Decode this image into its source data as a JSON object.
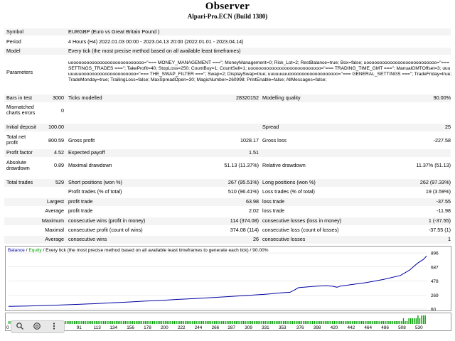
{
  "report": {
    "title": "Observer",
    "subtitle": "Alpari-Pro.ECN (Build 1380)"
  },
  "summary": {
    "symbol_label": "Symbol",
    "symbol_value": "EURGBP (Euro vs Great Britain Pound )",
    "period_label": "Period",
    "period_value": "4 Hours (H4) 2022.01.03 00:00 - 2023.04.13 20:00 (2022.01.01 - 2023.04.14)",
    "model_label": "Model",
    "model_value": "Every tick (the most precise method based on all available least timeframes)",
    "parameters_label": "Parameters",
    "parameters_value": "uoooooooooooooooooooooooooooo=\"=== MONEY_MANAGEMENT ===\"; MoneyManagement=0; Risk_Lot=2; RestBalance=true; Box=false; uooooooooooooooooooooooooooo=\"=== SETTINGS_TRADES ===\"; TakeProfit=40; StopLoss=250; CountBuy=1; CountSell=1; uooooooooooooooooooooooooooo=\"=== TRADING_TIME_GMT ===\"; ManualGMTOffset=3; uuuuuuuuooooooooooooooooooooo=\"=== THE_SWAP_FILTER ===\"; Swap=2; DisplaySwap=true; uuuuuuuuooooooooooooooooooo=\"=== GENERAL_SETTINGS ===\"; TradeFriday=true; TradeMonday=true; TrailingLoss=false; MaxSpreadOpen=30; MagicNumber=260998; PrintEnable=false; AllMessages=false;"
  },
  "stats": {
    "bars_label": "Bars in test",
    "bars_value": "3000",
    "ticks_label": "Ticks modelled",
    "ticks_value": "28320152",
    "quality_label": "Modelling quality",
    "quality_value": "90.00%",
    "mismatch_label": "Mismatched charts errors",
    "mismatch_value": "0",
    "deposit_label": "Initial deposit",
    "deposit_value": "100.00",
    "spread_label": "Spread",
    "spread_value": "25",
    "netprofit_label": "Total net profit",
    "netprofit_value": "800.59",
    "grossprofit_label": "Gross profit",
    "grossprofit_value": "1028.17",
    "grossloss_label": "Gross loss",
    "grossloss_value": "-227.58",
    "pf_label": "Profit factor",
    "pf_value": "4.52",
    "payoff_label": "Expected payoff",
    "payoff_value": "1.51",
    "absdd_label": "Absolute drawdown",
    "absdd_value": "0.89",
    "maxdd_label": "Maximal drawdown",
    "maxdd_value": "51.13 (11.37%)",
    "reldd_label": "Relative drawdown",
    "reldd_value": "11.37% (51.13)",
    "trades_label": "Total trades",
    "trades_value": "529",
    "short_label": "Short positions (won %)",
    "short_value": "267 (95.51%)",
    "long_label": "Long positions (won %)",
    "long_value": "262 (97.33%)",
    "profit_trades_label": "Profit trades (% of total)",
    "profit_trades_value": "510 (96.41%)",
    "loss_trades_label": "Loss trades (% of total)",
    "loss_trades_value": "19 (3.59%)",
    "largest_label": "Largest",
    "largest_profit_label": "profit trade",
    "largest_profit_value": "63.98",
    "largest_loss_label": "loss trade",
    "largest_loss_value": "-37.55",
    "average_label": "Average",
    "average_profit_label": "profit trade",
    "average_profit_value": "2.02",
    "average_loss_label": "loss trade",
    "average_loss_value": "-11.98",
    "maximum_label": "Maximum",
    "max_cw_label": "consecutive wins (profit in money)",
    "max_cw_value": "114 (374.08)",
    "max_cl_label": "consecutive losses (loss in money)",
    "max_cl_value": "1 (-37.55)",
    "maximal_label": "Maximal",
    "mxl_cp_label": "consecutive profit (count of wins)",
    "mxl_cp_value": "374.08 (114)",
    "mxl_cl_label": "consecutive loss (count of losses)",
    "mxl_cl_value": "-37.55 (1)",
    "avg2_label": "Average",
    "avg_cw_label": "consecutive wins",
    "avg_cw_value": "26",
    "avg_cl_label": "consecutive losses",
    "avg_cl_value": "1"
  },
  "chart_header": {
    "balance": "Balance",
    "sep": " / ",
    "equity": "Equity",
    "rest": " / Every tick (the most precise method based on all available least timeframes to generate each tick) / 90.00%",
    "balance_color": "#0000a0",
    "equity_color": "#00a000"
  },
  "chart_data": {
    "type": "line",
    "title": "",
    "xlabel": "",
    "ylabel": "",
    "ylim": [
      60,
      896
    ],
    "xlim": [
      0,
      542
    ],
    "y_ticks": [
      896,
      687,
      478,
      269,
      60
    ],
    "x_ticks": [
      0,
      25,
      47,
      69,
      91,
      113,
      134,
      156,
      178,
      200,
      222,
      244,
      266,
      287,
      309,
      331,
      353,
      376,
      398,
      420,
      442,
      464,
      486,
      508,
      530
    ],
    "series": [
      {
        "name": "Balance",
        "color": "#0000a0",
        "points": [
          [
            0,
            100
          ],
          [
            25,
            105
          ],
          [
            47,
            112
          ],
          [
            69,
            120
          ],
          [
            91,
            130
          ],
          [
            113,
            140
          ],
          [
            134,
            152
          ],
          [
            156,
            165
          ],
          [
            178,
            178
          ],
          [
            200,
            190
          ],
          [
            222,
            205
          ],
          [
            244,
            218
          ],
          [
            266,
            232
          ],
          [
            287,
            246
          ],
          [
            309,
            262
          ],
          [
            331,
            278
          ],
          [
            353,
            300
          ],
          [
            365,
            310
          ],
          [
            372,
            352
          ],
          [
            376,
            378
          ],
          [
            390,
            392
          ],
          [
            398,
            400
          ],
          [
            412,
            408
          ],
          [
            420,
            400
          ],
          [
            426,
            385
          ],
          [
            430,
            402
          ],
          [
            442,
            420
          ],
          [
            464,
            455
          ],
          [
            486,
            500
          ],
          [
            508,
            560
          ],
          [
            520,
            640
          ],
          [
            530,
            740
          ],
          [
            538,
            800
          ],
          [
            542,
            850
          ]
        ]
      }
    ],
    "volume_color": "#00a000",
    "volume_bars": [
      1,
      1,
      1,
      1,
      1,
      1,
      1,
      1,
      1,
      1,
      1,
      1,
      1,
      1,
      1,
      1,
      1,
      1,
      1,
      1,
      1,
      1,
      1,
      1,
      1,
      1,
      1,
      1,
      1,
      1,
      1,
      1,
      1,
      1,
      1,
      1,
      1,
      1,
      1,
      1,
      1,
      1,
      1,
      1,
      1,
      1,
      1,
      1,
      1,
      1,
      1,
      1,
      1,
      1,
      1,
      1,
      1,
      1,
      1,
      1,
      1,
      1,
      1,
      1,
      1,
      1,
      1,
      1,
      1,
      1,
      1,
      1,
      1,
      1,
      1,
      1,
      1,
      1,
      1,
      1,
      1,
      1,
      1,
      1,
      1,
      1,
      1,
      1,
      1,
      1,
      1,
      1,
      1,
      1,
      1,
      1,
      1,
      1,
      1,
      1,
      1,
      1,
      1,
      1,
      1,
      1,
      1,
      1,
      1,
      1,
      1,
      1,
      1,
      1,
      1,
      1,
      1,
      1,
      1,
      1,
      1,
      1,
      1,
      1,
      1,
      1,
      1,
      1,
      1,
      1,
      1,
      1,
      1,
      1,
      1,
      1,
      1,
      1,
      1,
      1,
      1,
      1,
      1,
      1,
      1,
      1,
      1,
      1,
      1,
      1,
      1,
      1,
      1,
      1,
      1,
      1,
      1,
      1,
      1,
      1,
      1,
      1,
      1,
      1,
      1,
      1,
      1,
      1,
      1,
      1,
      1,
      1,
      1,
      1,
      1,
      1,
      1,
      1,
      1,
      1,
      1,
      1,
      1,
      1,
      1,
      1,
      1,
      1,
      1,
      1,
      1,
      1,
      1,
      1,
      1,
      1,
      1,
      1,
      1,
      1,
      1,
      1,
      1,
      1,
      1,
      1,
      1,
      1,
      1,
      1,
      1,
      1,
      1,
      1,
      1,
      1,
      1,
      2,
      1,
      1,
      2,
      2,
      2,
      2,
      2,
      3,
      2,
      3,
      3,
      3
    ]
  },
  "toolbar": {
    "zoom_icon": "magnifier-icon",
    "chat_icon": "comment-icon",
    "more_icon": "more-vert-icon"
  }
}
